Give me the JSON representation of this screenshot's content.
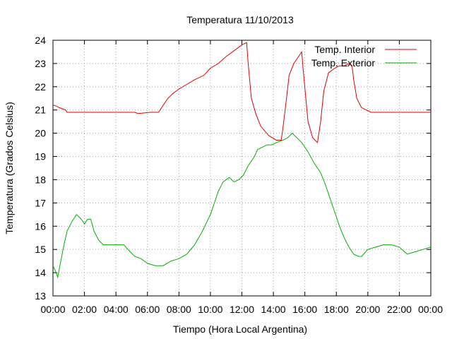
{
  "chart_data": {
    "type": "line",
    "title": "Temperatura 11/10/2013",
    "xlabel": "Tiempo (Hora Local Argentina)",
    "ylabel": "Temperatura (Grados Celsius)",
    "xlim": [
      0,
      24
    ],
    "ylim": [
      13,
      24
    ],
    "x_ticks": [
      "00:00",
      "02:00",
      "04:00",
      "06:00",
      "08:00",
      "10:00",
      "12:00",
      "14:00",
      "16:00",
      "18:00",
      "20:00",
      "22:00",
      "00:00"
    ],
    "y_ticks": [
      "13",
      "14",
      "15",
      "16",
      "17",
      "18",
      "19",
      "20",
      "21",
      "22",
      "23",
      "24"
    ],
    "grid": true,
    "legend_position": "top-right",
    "series": [
      {
        "name": "Temp. Interior",
        "color": "#e00000",
        "x": [
          0,
          0.1,
          0.4,
          0.8,
          0.9,
          1.6,
          2.4,
          3.3,
          4.2,
          5.2,
          5.4,
          6.2,
          6.7,
          7.0,
          7.3,
          7.6,
          8.0,
          8.5,
          9.0,
          9.6,
          10.0,
          10.5,
          11.0,
          11.6,
          12.0,
          12.3,
          12.4,
          12.6,
          12.9,
          13.2,
          13.7,
          14.2,
          14.5,
          14.6,
          14.8,
          15.0,
          15.3,
          15.6,
          15.8,
          15.9,
          16.2,
          16.5,
          16.8,
          17.0,
          17.2,
          17.5,
          17.9,
          18.2,
          18.5,
          18.8,
          19.0,
          19.1,
          19.3,
          19.6,
          20.2,
          21.0,
          22.0,
          23.0,
          24.0
        ],
        "y": [
          21.2,
          21.2,
          21.1,
          21.0,
          20.9,
          20.9,
          20.9,
          20.9,
          20.9,
          20.9,
          20.85,
          20.9,
          20.9,
          21.2,
          21.5,
          21.7,
          21.9,
          22.1,
          22.3,
          22.5,
          22.8,
          23.0,
          23.3,
          23.6,
          23.8,
          23.9,
          23.0,
          21.5,
          20.8,
          20.3,
          19.9,
          19.7,
          19.7,
          20.2,
          21.3,
          22.5,
          23.0,
          23.3,
          23.5,
          22.7,
          20.5,
          19.8,
          19.6,
          20.5,
          21.8,
          22.6,
          22.8,
          22.9,
          22.9,
          23.0,
          22.9,
          22.3,
          21.5,
          21.1,
          20.9,
          20.9,
          20.9,
          20.9,
          20.9
        ]
      },
      {
        "name": "Temp. Exterior",
        "color": "#00b000",
        "x": [
          0,
          0.2,
          0.3,
          0.5,
          0.7,
          0.9,
          1.2,
          1.5,
          1.8,
          2.0,
          2.2,
          2.4,
          2.6,
          2.9,
          3.2,
          3.8,
          4.5,
          4.9,
          5.2,
          5.6,
          6.0,
          6.5,
          7.0,
          7.5,
          8.0,
          8.5,
          9.0,
          9.5,
          10.0,
          10.2,
          10.5,
          10.8,
          11.2,
          11.5,
          11.8,
          12.1,
          12.4,
          12.8,
          13.0,
          13.3,
          13.6,
          13.9,
          14.2,
          14.6,
          14.9,
          15.2,
          15.5,
          15.8,
          16.2,
          16.6,
          17.0,
          17.3,
          17.6,
          17.9,
          18.2,
          18.5,
          18.8,
          19.1,
          19.4,
          19.6,
          20.0,
          20.5,
          21.0,
          21.5,
          22.0,
          22.5,
          23.0,
          23.5,
          24.0
        ],
        "y": [
          14.3,
          14.0,
          13.8,
          14.5,
          15.2,
          15.8,
          16.2,
          16.5,
          16.3,
          16.1,
          16.3,
          16.3,
          15.8,
          15.4,
          15.2,
          15.2,
          15.2,
          14.9,
          14.7,
          14.6,
          14.4,
          14.3,
          14.3,
          14.5,
          14.6,
          14.8,
          15.2,
          15.8,
          16.5,
          16.9,
          17.5,
          17.9,
          18.1,
          17.9,
          18.0,
          18.2,
          18.6,
          19.0,
          19.3,
          19.4,
          19.5,
          19.5,
          19.6,
          19.7,
          19.8,
          20.0,
          19.8,
          19.6,
          19.2,
          18.7,
          18.3,
          17.8,
          17.2,
          16.6,
          16.0,
          15.5,
          15.1,
          14.8,
          14.7,
          14.7,
          15.0,
          15.1,
          15.2,
          15.2,
          15.1,
          14.8,
          14.9,
          15.0,
          15.1
        ]
      }
    ]
  }
}
